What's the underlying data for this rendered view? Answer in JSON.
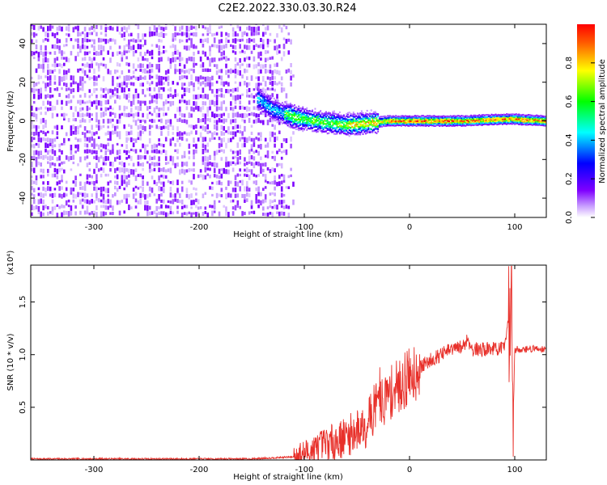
{
  "title": "C2E2.2022.330.03.30.R24",
  "colors": {
    "snr_line": "#e8302a",
    "frame": "#000000",
    "background": "#ffffff",
    "scatter_main": "#7a1fe6",
    "scatter_light": "#d2b4f7"
  },
  "chart_data": [
    {
      "type": "heatmap",
      "title": "C2E2.2022.330.03.30.R24",
      "xlabel": "Height of straight line (km)",
      "ylabel": "Frequency (Hz)",
      "xlim": [
        -360,
        130
      ],
      "ylim": [
        -50,
        50
      ],
      "xticks": [
        -300,
        -200,
        -100,
        0,
        100
      ],
      "yticks": [
        -40,
        -20,
        0,
        20,
        40
      ],
      "colorbar": {
        "label": "Normalized spectral amplitude",
        "range": [
          0.0,
          1.0
        ],
        "ticks": [
          "0.0",
          "0.2",
          "0.4",
          "0.6",
          "0.8"
        ],
        "colormap": [
          "#ffffff",
          "#7f00ff",
          "#0000ff",
          "#00ffff",
          "#00ff00",
          "#ffff00",
          "#ff0000"
        ]
      },
      "regions": [
        {
          "name": "noise",
          "x_range": [
            -360,
            -110
          ],
          "freq_range": [
            -50,
            50
          ],
          "amplitude": "0.0-0.2"
        },
        {
          "name": "signal",
          "x_range": [
            -145,
            130
          ],
          "center_freq": 0,
          "amplitude": "up to 1.0"
        }
      ],
      "ridge": [
        {
          "x": -145,
          "f": 12
        },
        {
          "x": -130,
          "f": 6
        },
        {
          "x": -110,
          "f": 2
        },
        {
          "x": -90,
          "f": 0
        },
        {
          "x": -60,
          "f": -2
        },
        {
          "x": -40,
          "f": -1
        },
        {
          "x": -20,
          "f": 0
        },
        {
          "x": 0,
          "f": 0
        },
        {
          "x": 50,
          "f": 0
        },
        {
          "x": 95,
          "f": 1
        },
        {
          "x": 130,
          "f": 0
        }
      ]
    },
    {
      "type": "line",
      "xlabel": "Height of straight line (km)",
      "ylabel": "SNR (10 * v/v)",
      "y_multiplier": "(x10⁴)",
      "xlim": [
        -360,
        130
      ],
      "ylim": [
        0,
        1.85
      ],
      "xticks": [
        -300,
        -200,
        -100,
        0,
        100
      ],
      "yticks": [
        "0.5",
        "1.0",
        "1.5"
      ],
      "series": [
        {
          "color": "#e8302a",
          "x": [
            -360,
            -300,
            -250,
            -200,
            -150,
            -110,
            -100,
            -90,
            -80,
            -70,
            -60,
            -50,
            -40,
            -35,
            -30,
            -25,
            -20,
            -10,
            0,
            10,
            20,
            30,
            40,
            50,
            55,
            60,
            70,
            80,
            90,
            95,
            97,
            98,
            100,
            110,
            120,
            130
          ],
          "y": [
            0.01,
            0.01,
            0.01,
            0.01,
            0.01,
            0.03,
            0.06,
            0.1,
            0.15,
            0.18,
            0.22,
            0.28,
            0.35,
            0.45,
            0.6,
            0.55,
            0.62,
            0.7,
            0.8,
            0.88,
            0.95,
            1.0,
            1.05,
            1.07,
            1.15,
            1.05,
            1.05,
            1.06,
            1.05,
            1.4,
            1.8,
            0.05,
            1.05,
            1.05,
            1.06,
            1.05
          ]
        }
      ]
    }
  ]
}
